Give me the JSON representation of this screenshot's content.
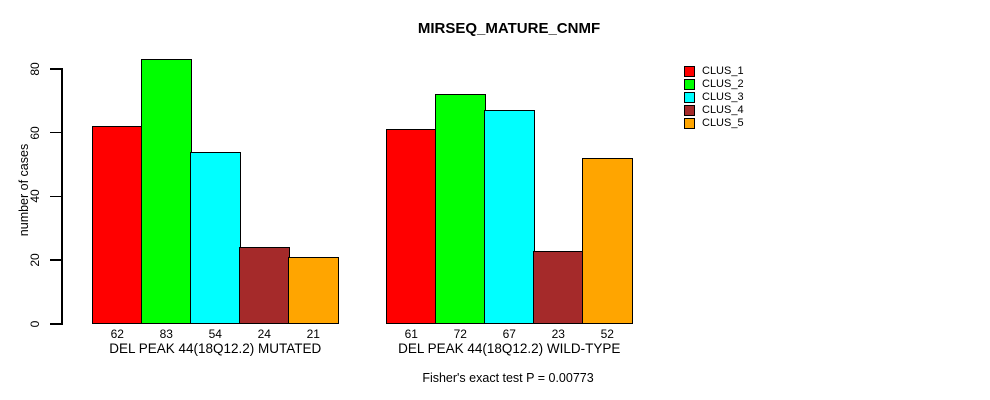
{
  "title": "MIRSEQ_MATURE_CNMF",
  "footer": "Fisher's exact test P = 0.00773",
  "y_axis": {
    "label": "number of cases",
    "ticks": [
      0,
      20,
      40,
      60,
      80
    ]
  },
  "legend": {
    "position": "top-right",
    "entries": [
      {
        "label": "CLUS_1",
        "color": "#FF0000"
      },
      {
        "label": "CLUS_2",
        "color": "#00FF00"
      },
      {
        "label": "CLUS_3",
        "color": "#00FFFF"
      },
      {
        "label": "CLUS_4",
        "color": "#A52A2A"
      },
      {
        "label": "CLUS_5",
        "color": "#FFA500"
      }
    ]
  },
  "chart_data": {
    "type": "bar",
    "title": "MIRSEQ_MATURE_CNMF",
    "xlabel": "",
    "ylabel": "number of cases",
    "ylim": [
      0,
      80
    ],
    "yticks": [
      0,
      20,
      40,
      60,
      80
    ],
    "grid": false,
    "legend_position": "top-right",
    "bar_value_labels": true,
    "categories": [
      "DEL PEAK 44(18Q12.2) MUTATED",
      "DEL PEAK 44(18Q12.2) WILD-TYPE"
    ],
    "series": [
      {
        "name": "CLUS_1",
        "color": "#FF0000",
        "values": [
          62,
          61
        ]
      },
      {
        "name": "CLUS_2",
        "color": "#00FF00",
        "values": [
          83,
          72
        ]
      },
      {
        "name": "CLUS_3",
        "color": "#00FFFF",
        "values": [
          54,
          67
        ]
      },
      {
        "name": "CLUS_4",
        "color": "#A52A2A",
        "values": [
          24,
          23
        ]
      },
      {
        "name": "CLUS_5",
        "color": "#FFA500",
        "values": [
          21,
          52
        ]
      }
    ],
    "annotation": "Fisher's exact test P = 0.00773"
  }
}
